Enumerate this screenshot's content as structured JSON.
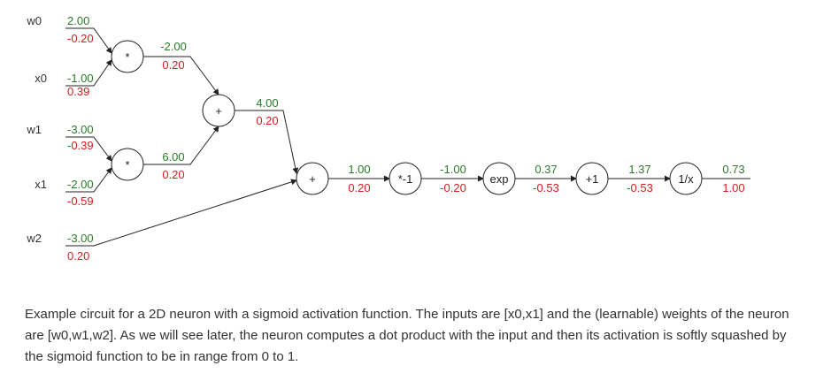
{
  "colors": {
    "forward": "#2a7a2a",
    "gradient": "#d32020",
    "wire": "#222222"
  },
  "circuit": {
    "inputs": [
      {
        "id": "w0",
        "label": "w0",
        "value": "2.00",
        "grad": "-0.20"
      },
      {
        "id": "x0",
        "label": "x0",
        "value": "-1.00",
        "grad": "0.39"
      },
      {
        "id": "w1",
        "label": "w1",
        "value": "-3.00",
        "grad": "-0.39"
      },
      {
        "id": "x1",
        "label": "x1",
        "value": "-2.00",
        "grad": "-0.59"
      },
      {
        "id": "w2",
        "label": "w2",
        "value": "-3.00",
        "grad": "0.20"
      }
    ],
    "gates": [
      {
        "id": "mul1",
        "op": "*",
        "out_value": "-2.00",
        "out_grad": "0.20"
      },
      {
        "id": "mul2",
        "op": "*",
        "out_value": "6.00",
        "out_grad": "0.20"
      },
      {
        "id": "add1",
        "op": "+",
        "out_value": "4.00",
        "out_grad": "0.20"
      },
      {
        "id": "add2",
        "op": "+",
        "out_value": "1.00",
        "out_grad": "0.20"
      },
      {
        "id": "neg",
        "op": "*-1",
        "out_value": "-1.00",
        "out_grad": "-0.20"
      },
      {
        "id": "exp",
        "op": "exp",
        "out_value": "0.37",
        "out_grad": "-0.53"
      },
      {
        "id": "inc",
        "op": "+1",
        "out_value": "1.37",
        "out_grad": "-0.53"
      },
      {
        "id": "recip",
        "op": "1/x",
        "out_value": "0.73",
        "out_grad": "1.00"
      }
    ]
  },
  "caption": "Example circuit for a 2D neuron with a sigmoid activation function. The inputs are [x0,x1] and the (learnable) weights of the neuron are [w0,w1,w2]. As we will see later, the neuron computes a dot product with the input and then its activation is softly squashed by the sigmoid function to be in range from 0 to 1."
}
